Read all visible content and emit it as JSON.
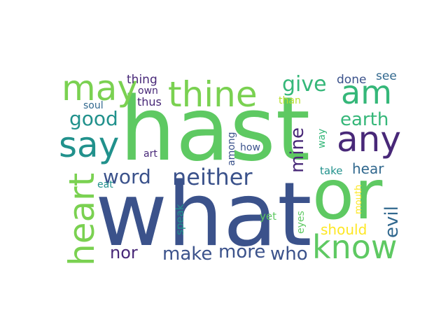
{
  "words": [
    {
      "text": "hast",
      "color": "#5ec962"
    },
    {
      "text": "what",
      "color": "#3b528b"
    },
    {
      "text": "or",
      "color": "#5ec962"
    },
    {
      "text": "thine",
      "color": "#7ad151"
    },
    {
      "text": "may",
      "color": "#7ad151"
    },
    {
      "text": "am",
      "color": "#35b779"
    },
    {
      "text": "say",
      "color": "#21918c"
    },
    {
      "text": "any",
      "color": "#482878"
    },
    {
      "text": "heart",
      "color": "#7ad151"
    },
    {
      "text": "know",
      "color": "#5ec962"
    },
    {
      "text": "neither",
      "color": "#3b528b"
    },
    {
      "text": "give",
      "color": "#35b779"
    },
    {
      "text": "earth",
      "color": "#35b779"
    },
    {
      "text": "good",
      "color": "#21918c"
    },
    {
      "text": "word",
      "color": "#3b528b"
    },
    {
      "text": "mine",
      "color": "#482878"
    },
    {
      "text": "hear",
      "color": "#31688e"
    },
    {
      "text": "evil",
      "color": "#31688e"
    },
    {
      "text": "make",
      "color": "#3b528b"
    },
    {
      "text": "more",
      "color": "#3b528b"
    },
    {
      "text": "who",
      "color": "#3b528b"
    },
    {
      "text": "nor",
      "color": "#482878"
    },
    {
      "text": "should",
      "color": "#fde725"
    },
    {
      "text": "done",
      "color": "#3b528b"
    },
    {
      "text": "see",
      "color": "#31688e"
    },
    {
      "text": "thing",
      "color": "#482878"
    },
    {
      "text": "own",
      "color": "#482878"
    },
    {
      "text": "thus",
      "color": "#482878"
    },
    {
      "text": "soul",
      "color": "#31688e"
    },
    {
      "text": "than",
      "color": "#b5de2b"
    },
    {
      "text": "among",
      "color": "#3b528b"
    },
    {
      "text": "how",
      "color": "#3b528b"
    },
    {
      "text": "art",
      "color": "#482878"
    },
    {
      "text": "way",
      "color": "#35b779"
    },
    {
      "text": "take",
      "color": "#21918c"
    },
    {
      "text": "eat",
      "color": "#21918c"
    },
    {
      "text": "speak",
      "color": "#21918c"
    },
    {
      "text": "yet",
      "color": "#5ec962"
    },
    {
      "text": "eyes",
      "color": "#5ec962"
    },
    {
      "text": "mouth",
      "color": "#fde725"
    }
  ]
}
